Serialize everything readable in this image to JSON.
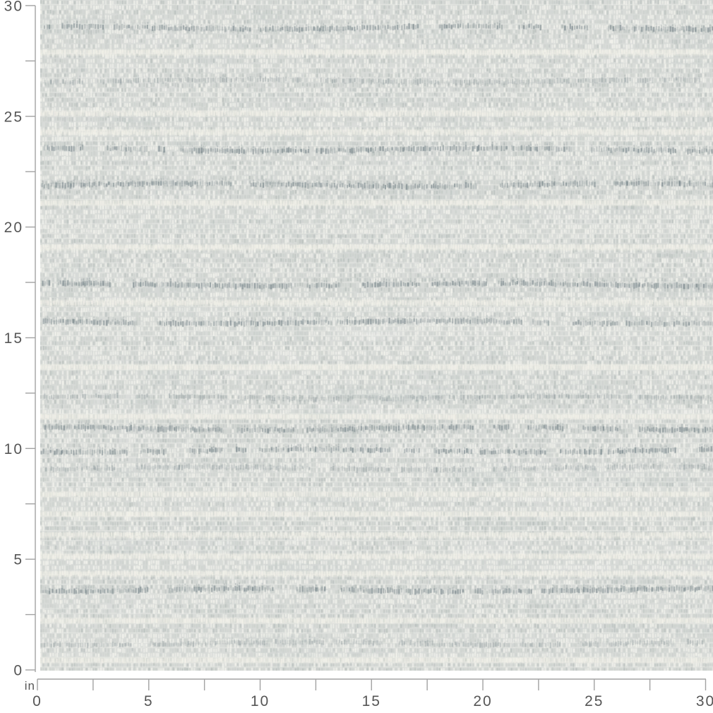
{
  "figure": {
    "type": "fabric-swatch-scale-preview",
    "unit_label": "in",
    "x_axis": {
      "orientation": "bottom",
      "range_in": [
        0,
        30
      ],
      "major_tick_interval_in": 5,
      "minor_tick_interval_in": 2.5,
      "tick_labels": [
        "0",
        "5",
        "10",
        "15",
        "20",
        "25",
        "30"
      ]
    },
    "y_axis": {
      "orientation": "left",
      "range_in": [
        0,
        30
      ],
      "major_tick_interval_in": 5,
      "minor_tick_interval_in": 2.5,
      "tick_labels": [
        "0",
        "5",
        "10",
        "15",
        "20",
        "25",
        "30"
      ]
    }
  },
  "swatch": {
    "description": "Light grey woven fabric; horizontal rows of short vertical stitch dashes with cream thread rows and scattered darker grey-blue slub bands",
    "base_color": "#d8dbd8",
    "light_thread_color": "#f4f4ee",
    "mid_thread_color": "#cbd0cc",
    "gray_thread_color": "#b0b8b5",
    "dark_slub_color": "#6e7d83",
    "cream_band_color": "#f3f1e9",
    "dark_bands": [
      {
        "y_in": 29.0,
        "tone": "dark"
      },
      {
        "y_in": 26.6,
        "tone": "medium"
      },
      {
        "y_in": 23.5,
        "tone": "dark"
      },
      {
        "y_in": 21.9,
        "tone": "dark"
      },
      {
        "y_in": 17.4,
        "tone": "dark"
      },
      {
        "y_in": 15.7,
        "tone": "dark"
      },
      {
        "y_in": 12.3,
        "tone": "medium"
      },
      {
        "y_in": 10.9,
        "tone": "dark"
      },
      {
        "y_in": 9.9,
        "tone": "dark"
      },
      {
        "y_in": 9.1,
        "tone": "medium"
      },
      {
        "y_in": 3.6,
        "tone": "dark"
      },
      {
        "y_in": 1.2,
        "tone": "medium"
      }
    ],
    "cream_bands_y_in": [
      27.9,
      25.15,
      24.3,
      21.1,
      19.1,
      16.6,
      13.7,
      11.45,
      7.95,
      7.05,
      6.1,
      5.15,
      4.35,
      2.25,
      0.45
    ]
  },
  "colors": {
    "axis_line": "#a2a2a2",
    "tick_label_text": "#565656",
    "page_background": "#ffffff"
  }
}
